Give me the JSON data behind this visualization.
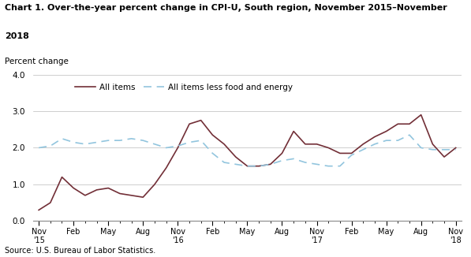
{
  "title_line1": "Chart 1. Over-the-year percent change in CPI-U, South region, November 2015–November",
  "title_line2": "2018",
  "ylabel_label": "Percent change",
  "source": "Source: U.S. Bureau of Labor Statistics.",
  "ylim": [
    0.0,
    4.0
  ],
  "yticks": [
    0.0,
    1.0,
    2.0,
    3.0,
    4.0
  ],
  "tick_labels": [
    "Nov\n'15",
    "Feb",
    "May",
    "Aug",
    "Nov\n'16",
    "Feb",
    "May",
    "Aug",
    "Nov\n'17",
    "Feb",
    "May",
    "Aug",
    "Nov\n'18"
  ],
  "all_items_x": [
    0,
    1,
    2,
    3,
    4,
    5,
    6,
    7,
    8,
    9,
    10,
    11,
    12,
    13,
    14,
    15,
    16,
    17,
    18,
    19,
    20,
    21,
    22,
    23,
    24,
    25,
    26,
    27,
    28,
    29,
    30,
    31,
    32,
    33,
    34,
    35,
    36
  ],
  "all_items": [
    0.3,
    0.5,
    1.2,
    0.9,
    0.7,
    0.85,
    0.9,
    0.75,
    0.7,
    0.65,
    1.0,
    1.45,
    2.0,
    2.65,
    2.75,
    2.35,
    2.1,
    1.75,
    1.5,
    1.5,
    1.55,
    1.85,
    2.45,
    2.1,
    2.1,
    2.0,
    1.85,
    1.85,
    2.1,
    2.3,
    2.45,
    2.65,
    2.65,
    2.9,
    2.1,
    1.75,
    2.0
  ],
  "all_items_less_x": [
    0,
    1,
    2,
    3,
    4,
    5,
    6,
    7,
    8,
    9,
    10,
    11,
    12,
    13,
    14,
    15,
    16,
    17,
    18,
    19,
    20,
    21,
    22,
    23,
    24,
    25,
    26,
    27,
    28,
    29,
    30,
    31,
    32,
    33,
    34,
    35,
    36
  ],
  "all_items_less": [
    2.0,
    2.05,
    2.25,
    2.15,
    2.1,
    2.15,
    2.2,
    2.2,
    2.25,
    2.2,
    2.1,
    2.0,
    2.05,
    2.15,
    2.2,
    1.85,
    1.6,
    1.55,
    1.5,
    1.5,
    1.55,
    1.65,
    1.7,
    1.6,
    1.55,
    1.5,
    1.5,
    1.8,
    1.95,
    2.1,
    2.2,
    2.2,
    2.35,
    2.0,
    1.95,
    1.95,
    1.95
  ],
  "all_items_color": "#722F37",
  "all_items_less_color": "#92C5DE",
  "background_color": "#ffffff",
  "grid_color": "#bbbbbb"
}
